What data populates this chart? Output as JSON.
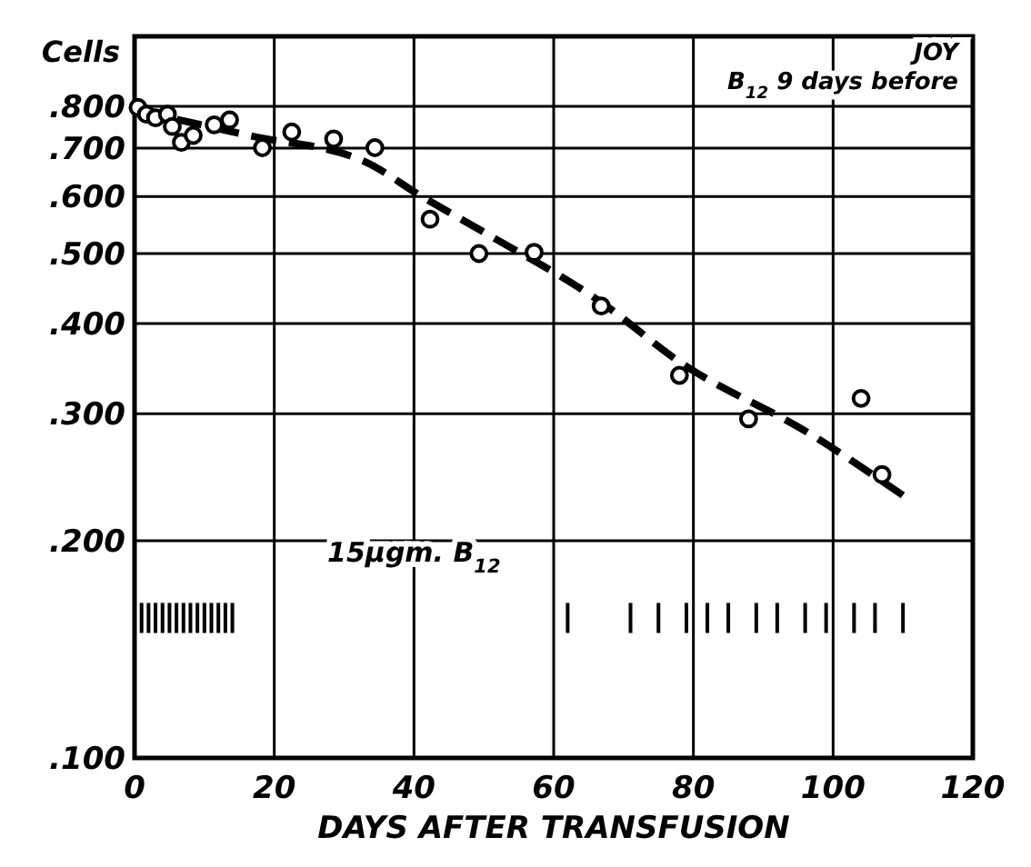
{
  "chart_data": {
    "type": "scatter",
    "xlabel": "DAYS AFTER TRANSFUSION",
    "ylabel": "Cells",
    "log": "y",
    "grid": true,
    "marker": "circle",
    "xlim": [
      0,
      120
    ],
    "xticks": [
      0,
      20,
      40,
      60,
      80,
      100,
      120
    ],
    "ylim": [
      0.1,
      1.0
    ],
    "yticks": [
      {
        "value": 0.1,
        "label": ".100"
      },
      {
        "value": 0.2,
        "label": ".200"
      },
      {
        "value": 0.3,
        "label": ".300"
      },
      {
        "value": 0.4,
        "label": ".400"
      },
      {
        "value": 0.5,
        "label": ".500"
      },
      {
        "value": 0.6,
        "label": ".600"
      },
      {
        "value": 0.7,
        "label": ".700"
      },
      {
        "value": 0.8,
        "label": ".800"
      }
    ],
    "annotations": [
      "JOY",
      "B$_{12}$ 9 days before",
      "15μgm. B$_{12}$"
    ],
    "series": [
      {
        "color": "#000000",
        "x": [
          0.5,
          1.7,
          3,
          4.7,
          5.4,
          6.7,
          8.4,
          11.4,
          13.6,
          18.3,
          22.5,
          28.5,
          34.4,
          42.3,
          49.3,
          57.2,
          66.8,
          78,
          87.9,
          104,
          107
        ],
        "values": [
          0.797,
          0.78,
          0.771,
          0.78,
          0.75,
          0.713,
          0.729,
          0.754,
          0.766,
          0.701,
          0.737,
          0.721,
          0.701,
          0.558,
          0.5,
          0.502,
          0.423,
          0.339,
          0.295,
          0.315,
          0.247
        ]
      },
      {
        "type": "line",
        "color": "#000000",
        "line_style": "dashed",
        "marker": "none",
        "x": [
          0.7,
          16.3,
          32.9,
          41.1,
          50.2,
          66.8,
          78,
          96.5,
          110.6
        ],
        "values": [
          0.788,
          0.729,
          0.671,
          0.6,
          0.534,
          0.428,
          0.354,
          0.282,
          0.229
        ]
      },
      {
        "type": "bar",
        "color": "#000000",
        "x": [
          1,
          2,
          3,
          4,
          5,
          6,
          7,
          8,
          9,
          10,
          11,
          12,
          13,
          14,
          62,
          71,
          75,
          79,
          82,
          85,
          89,
          92,
          96,
          99,
          103,
          106,
          110
        ],
        "base": [
          0.149,
          0.149,
          0.149,
          0.149,
          0.149,
          0.149,
          0.149,
          0.149,
          0.149,
          0.149,
          0.149,
          0.149,
          0.149,
          0.149,
          0.149,
          0.149,
          0.149,
          0.149,
          0.149,
          0.149,
          0.149,
          0.149,
          0.149,
          0.149,
          0.149,
          0.149,
          0.149
        ],
        "values": [
          0.015,
          0.015,
          0.015,
          0.015,
          0.015,
          0.015,
          0.015,
          0.015,
          0.015,
          0.015,
          0.015,
          0.015,
          0.015,
          0.015,
          0.015,
          0.015,
          0.015,
          0.015,
          0.015,
          0.015,
          0.015,
          0.015,
          0.015,
          0.015,
          0.015,
          0.015,
          0.015
        ]
      }
    ]
  }
}
